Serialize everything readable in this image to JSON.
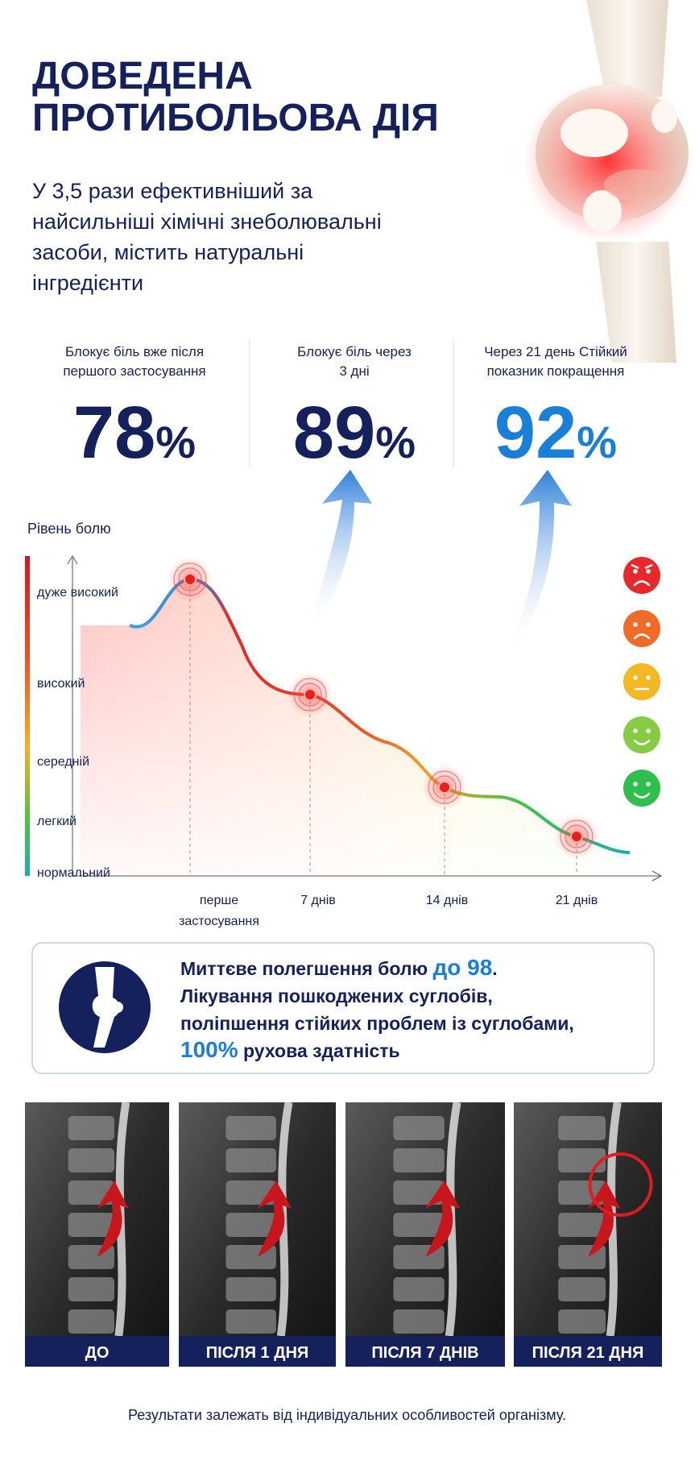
{
  "header": {
    "title_lines": [
      "ДОВЕДЕНА",
      "ПРОТИБОЛЬОВА ДІЯ"
    ],
    "subtitle_lines": [
      "У 3,5 рази ефективніший за",
      "найсильніші хімічні знеболювальні",
      "засоби, містить натуральні",
      "інгредієнти"
    ]
  },
  "stats": [
    {
      "caption_lines": [
        "Блокує біль вже після",
        "першого застосування"
      ],
      "number": "78",
      "unit": "%"
    },
    {
      "caption_lines": [
        "Блокує біль через",
        "3 дні"
      ],
      "number": "89",
      "unit": "%"
    },
    {
      "caption_lines": [
        "Через 21 день Стійкий",
        "показник покращення"
      ],
      "number": "92",
      "unit": "%"
    }
  ],
  "pain_chart": {
    "axis_title": "Рівень болю",
    "levels": [
      "дуже високий",
      "високий",
      "середній",
      "легкий",
      "нормальний"
    ],
    "x_labels": [
      [
        "перше",
        "застосування"
      ],
      [
        "7 днів"
      ],
      [
        "14 днів"
      ],
      [
        "21 днів"
      ]
    ]
  },
  "info_box": {
    "lines": [
      [
        "Миттєве полегшення болю ",
        "до 98",
        "."
      ],
      [
        "Лікування пошкоджених суглобів,"
      ],
      [
        "поліпшення стійких проблем із суглобами,"
      ],
      [
        "100%",
        " рухова здатність"
      ]
    ]
  },
  "images": [
    "ДО",
    "ПІСЛЯ 1 ДНЯ",
    "ПІСЛЯ 7 ДНІВ",
    "ПІСЛЯ 21 ДНЯ"
  ],
  "footer": "Результати залежать від індивідуальних особливостей організму."
}
